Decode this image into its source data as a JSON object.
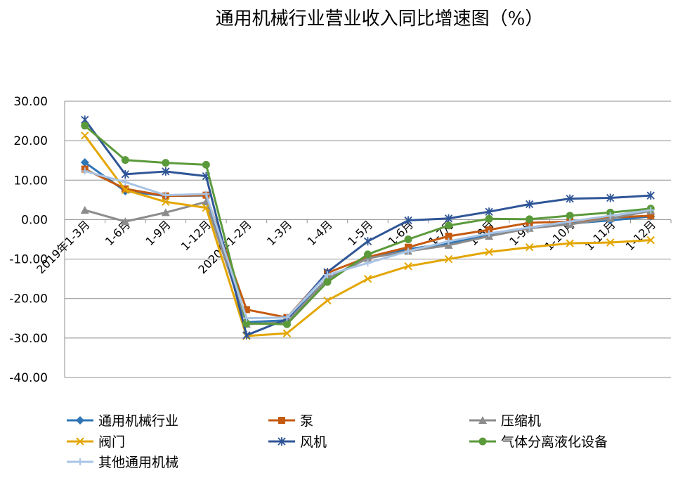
{
  "chart_data": {
    "type": "line",
    "title": "通用机械行业营业收入同比增速图（%）",
    "xlabel": "",
    "ylabel": "",
    "ylim": [
      -40,
      30
    ],
    "yticks": [
      "30.00",
      "20.00",
      "10.00",
      "0.00",
      "-10.00",
      "-20.00",
      "-30.00",
      "-40.00"
    ],
    "ytick_values": [
      30,
      20,
      10,
      0,
      -10,
      -20,
      -30,
      -40
    ],
    "categories": [
      "2019年1-3月",
      "1-6月",
      "1-9月",
      "1-12月",
      "2020年1-2月",
      "1-3月",
      "1-4月",
      "1-5月",
      "1-6月",
      "1-7月",
      "1-8月",
      "1-9月",
      "1-10月",
      "1-11月",
      "1-12月"
    ],
    "grid": true,
    "legend_position": "bottom",
    "series": [
      {
        "name": "通用机械行业",
        "color": "#2E75B6",
        "marker": "diamond",
        "values": [
          14.5,
          7.2,
          6.0,
          6.1,
          -26.0,
          -25.5,
          -15.0,
          -9.5,
          -7.5,
          -6.0,
          -4.0,
          -2.0,
          -1.0,
          -0.2,
          0.8
        ]
      },
      {
        "name": "泵",
        "color": "#C55A11",
        "marker": "square",
        "values": [
          12.8,
          7.8,
          6.0,
          6.2,
          -22.8,
          -24.8,
          -13.5,
          -9.5,
          -7.0,
          -4.2,
          -2.6,
          -0.8,
          -0.5,
          0.5,
          1.0
        ]
      },
      {
        "name": "压缩机",
        "color": "#8C8C8C",
        "marker": "triangle",
        "values": [
          2.4,
          -0.5,
          1.8,
          4.5,
          -26.5,
          -26.0,
          -15.0,
          -9.8,
          -8.0,
          -6.5,
          -4.2,
          -2.2,
          -1.2,
          0.3,
          2.2
        ]
      },
      {
        "name": "阀门",
        "color": "#E3A600",
        "marker": "x",
        "values": [
          21.3,
          7.5,
          4.5,
          3.0,
          -29.5,
          -28.8,
          -20.5,
          -15.0,
          -11.8,
          -10.0,
          -8.2,
          -7.0,
          -6.0,
          -5.8,
          -5.2
        ]
      },
      {
        "name": "风机",
        "color": "#2F5597",
        "marker": "star",
        "values": [
          25.3,
          11.5,
          12.2,
          11.0,
          -29.3,
          -25.2,
          -13.3,
          -5.5,
          -0.2,
          0.3,
          2.0,
          3.9,
          5.3,
          5.5,
          6.1
        ]
      },
      {
        "name": "气体分离液化设备",
        "color": "#5B9A3B",
        "marker": "circle",
        "values": [
          23.8,
          15.1,
          14.4,
          13.9,
          -26.3,
          -26.5,
          -15.8,
          -8.8,
          -5.0,
          -1.5,
          0.2,
          0.1,
          1.0,
          1.8,
          2.8
        ]
      },
      {
        "name": "其他通用机械",
        "color": "#A9C4E4",
        "marker": "plus",
        "values": [
          12.3,
          9.5,
          6.2,
          6.5,
          -25.0,
          -24.8,
          -14.0,
          -11.0,
          -8.0,
          -5.5,
          -3.5,
          -2.0,
          -0.5,
          1.0,
          2.4
        ]
      }
    ]
  }
}
